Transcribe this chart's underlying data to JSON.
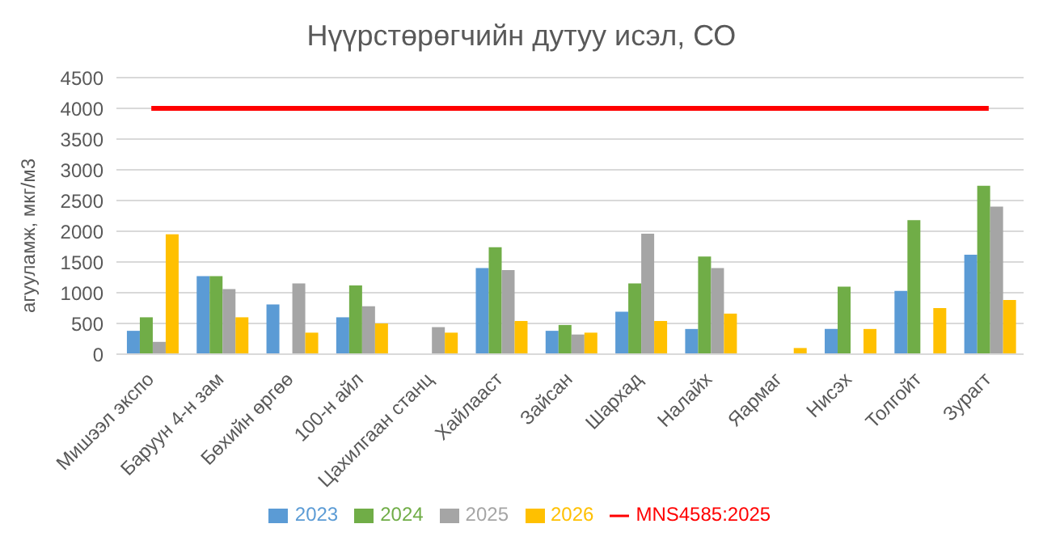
{
  "chart_data": {
    "type": "bar",
    "title": "Нүүрстөрөгчийн дутуу исэл, СО",
    "ylabel": "агууламж, мкг/м3",
    "categories": [
      "Мишээл экспо",
      "Баруун 4-н зам",
      "Бөхийн өргөө",
      "100-н айл",
      "Цахилгаан станц",
      "Хайлааст",
      "Зайсан",
      "Шархад",
      "Налайх",
      "Яармаг",
      "Нисэх",
      "Толгойт",
      "Зурагт"
    ],
    "series": [
      {
        "name": "2023",
        "color": "#5b9bd5",
        "values": [
          380,
          1270,
          810,
          600,
          null,
          1400,
          380,
          690,
          410,
          null,
          410,
          1030,
          1620
        ]
      },
      {
        "name": "2024",
        "color": "#70ad47",
        "values": [
          600,
          1270,
          null,
          1120,
          null,
          1740,
          475,
          1150,
          1590,
          null,
          1100,
          2180,
          2740
        ]
      },
      {
        "name": "2025",
        "color": "#a5a5a5",
        "values": [
          200,
          1060,
          1150,
          780,
          440,
          1370,
          320,
          1960,
          1400,
          null,
          null,
          null,
          2400
        ]
      },
      {
        "name": "2026",
        "color": "#ffc000",
        "values": [
          1950,
          600,
          350,
          500,
          350,
          540,
          350,
          540,
          660,
          100,
          410,
          750,
          880
        ]
      },
      {
        "name": "MNS4585:2025",
        "type": "line",
        "color": "#ff0000",
        "values": [
          4000,
          4000,
          4000,
          4000,
          4000,
          4000,
          4000,
          4000,
          4000,
          4000,
          4000,
          4000,
          4000
        ]
      }
    ],
    "ylim": [
      0,
      4500
    ],
    "yticks": [
      0,
      500,
      1000,
      1500,
      2000,
      2500,
      3000,
      3500,
      4000,
      4500
    ],
    "grid": "y",
    "legend": "bottom",
    "marker": "none"
  }
}
